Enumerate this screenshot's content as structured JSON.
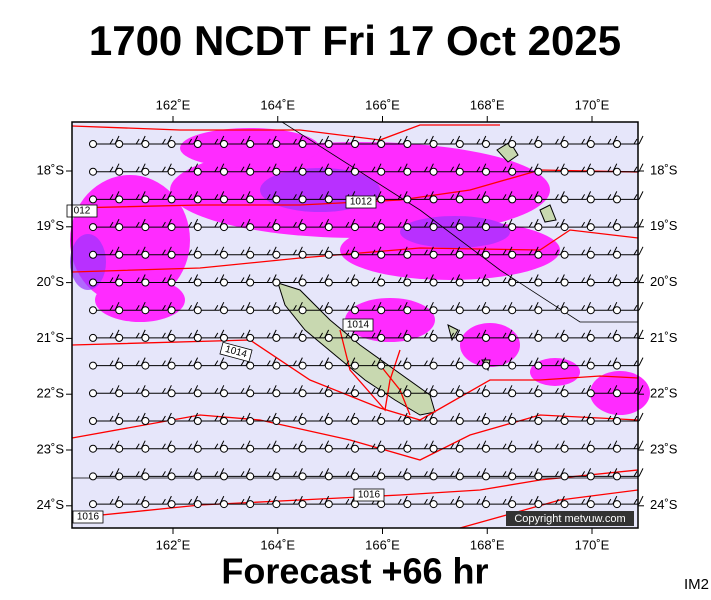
{
  "title": "1700 NCDT Fri 17 Oct 2025",
  "footer": "Forecast +66 hr",
  "image_id": "IM2",
  "copyright": "Copyright metvuw.com",
  "longitude_labels": [
    "162˚E",
    "164˚E",
    "166˚E",
    "168˚E",
    "170˚E"
  ],
  "latitude_labels": [
    "18˚S",
    "19˚S",
    "20˚S",
    "21˚S",
    "22˚S",
    "23˚S",
    "24˚S"
  ],
  "isobar_labels": [
    "012",
    "1012",
    "1014",
    "1014",
    "1016",
    "1016"
  ]
}
